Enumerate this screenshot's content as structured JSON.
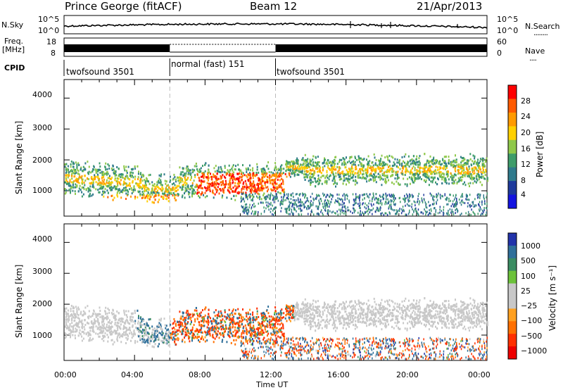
{
  "header": {
    "station": "Prince George (fitACF)",
    "beam": "Beam 12",
    "date": "21/Apr/2013"
  },
  "left_labels": {
    "nsky": "N.Sky",
    "freq": "Freq.",
    "mhz": "[MHz]",
    "cpid": "CPID"
  },
  "right_labels": {
    "nsearch": "N.Search",
    "nave": "Nave",
    "nsearch_dots": "........",
    "nave_dots": "...."
  },
  "cpid_segments": [
    "twofsound 3501",
    "normal (fast) 151",
    "twofsound 3501"
  ],
  "chart_data": [
    {
      "type": "line",
      "name": "noise",
      "left_ticks": [
        "10^5",
        "10^0"
      ],
      "right_ticks": [
        "10^5",
        "10^0"
      ]
    },
    {
      "type": "line",
      "name": "freq-nave",
      "left_ticks": [
        "18",
        "8"
      ],
      "right_ticks": [
        "60",
        "0"
      ]
    },
    {
      "type": "heatmap",
      "name": "power",
      "ylabel": "Slant Range [km]",
      "yticks": [
        "4000",
        "3000",
        "2000",
        "1000"
      ],
      "ylim": [
        180,
        4600
      ],
      "colorbar": {
        "label": "Power [dB]",
        "ticks": [
          "28",
          "24",
          "20",
          "16",
          "12",
          "8",
          "4"
        ],
        "colors": [
          "#ff0000",
          "#ff5a00",
          "#ff9a00",
          "#ffd000",
          "#8fc84a",
          "#3e9c6a",
          "#2f7a8c",
          "#1e3a9c",
          "#1414e0"
        ]
      }
    },
    {
      "type": "heatmap",
      "name": "velocity",
      "ylabel": "Slant Range [km]",
      "yticks": [
        "4000",
        "3000",
        "2000",
        "1000"
      ],
      "ylim": [
        180,
        4600
      ],
      "xlabel": "Time UT",
      "xticks": [
        "00:00",
        "04:00",
        "08:00",
        "12:00",
        "16:00",
        "20:00",
        "00:00"
      ],
      "colorbar": {
        "label": "Velocity [m s⁻¹]",
        "ticks": [
          "1000",
          "500",
          "100",
          "25",
          "−25",
          "−100",
          "−500",
          "−1000"
        ],
        "colors": [
          "#2233aa",
          "#2f6f9a",
          "#3a8c62",
          "#6cc23a",
          "#c8c8c8",
          "#c8c8c8",
          "#ffa020",
          "#ff7000",
          "#ff3000",
          "#ee0000"
        ]
      }
    }
  ]
}
